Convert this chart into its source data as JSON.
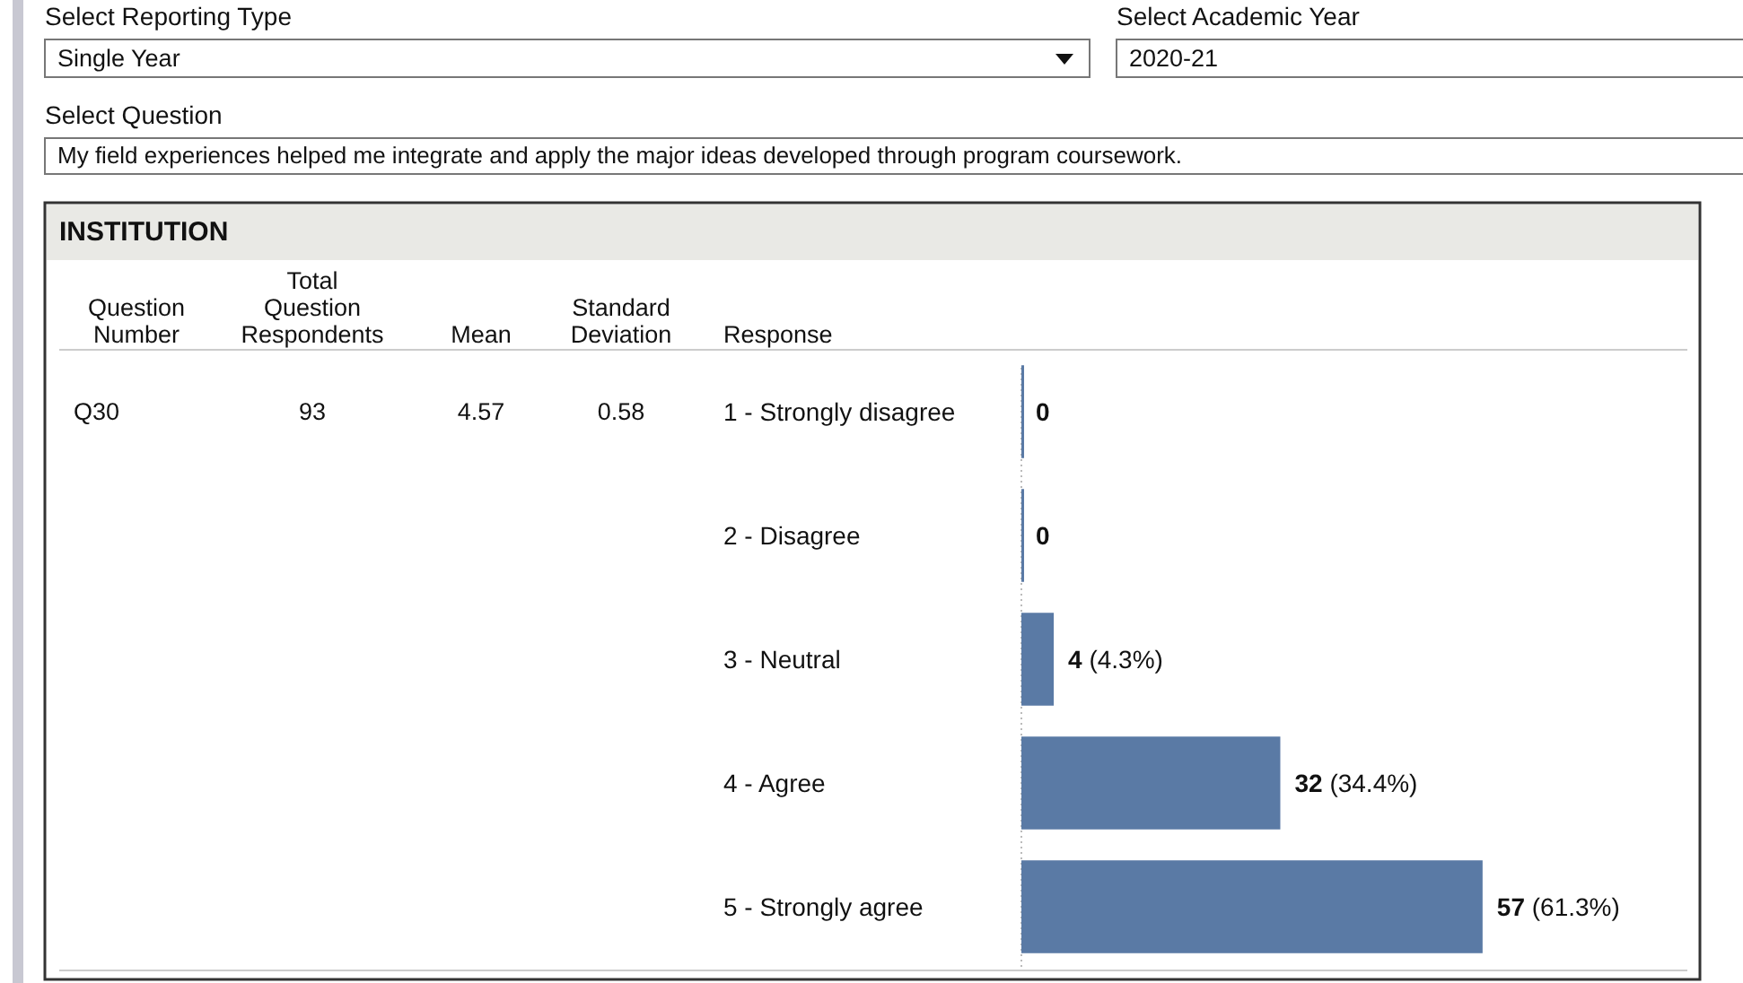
{
  "chart_data": {
    "type": "bar",
    "orientation": "horizontal",
    "title": "INSTITUTION",
    "ylabel": "Response",
    "categories": [
      "1 - Strongly disagree",
      "2 - Disagree",
      "3 - Neutral",
      "4 - Agree",
      "5 - Strongly agree"
    ],
    "values": [
      0,
      0,
      4,
      32,
      57
    ],
    "color": "#5a7aa5",
    "value_labels": [
      "0",
      "0",
      "4 (4.3%)",
      "32 (34.4%)",
      "57 (61.3%)"
    ],
    "annotations": [
      "Select Reporting Type",
      "Single Year",
      "Select Academic Year",
      "2020-21",
      "Select Question",
      "My field experiences helped me integrate and apply the major ideas developed through program coursework.",
      "Question\nNumber",
      "Total\nQuestion\nRespondents",
      "Mean",
      "Standard\nDeviation",
      "Q30",
      "93",
      "4.57",
      "0.58"
    ]
  }
}
